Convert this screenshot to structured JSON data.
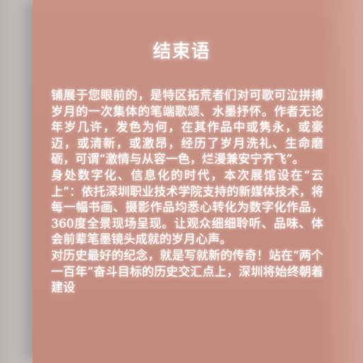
{
  "title": "结束语",
  "paragraphs": [
    "铺展于您眼前的，是特区拓荒者们对可歌可泣拼搏岁月的一次集体的笔端歌颂、水墨抒怀。作者无论年岁几许，发色为何，在其作品中或隽永，或豪迈，或清新，或激昂，经历了岁月洗礼、生命磨砺，可谓“激情与从容一色，烂漫兼安宁齐飞”。",
    "身处数字化、信息化的时代，本次展馆设在“云上”：依托深圳职业技术学院支持的新媒体技术，将每一幅书画、摄影作品均悉心转化为数字化作品，360度全景现场呈现。让观众细细聆听、品味、体会前辈笔墨镜头成就的岁月心声。",
    "对历史最好的纪念，就是写就新的传奇！站在“两个一百年”奋斗目标的历史交汇点上，深圳将始终朝着建设"
  ]
}
